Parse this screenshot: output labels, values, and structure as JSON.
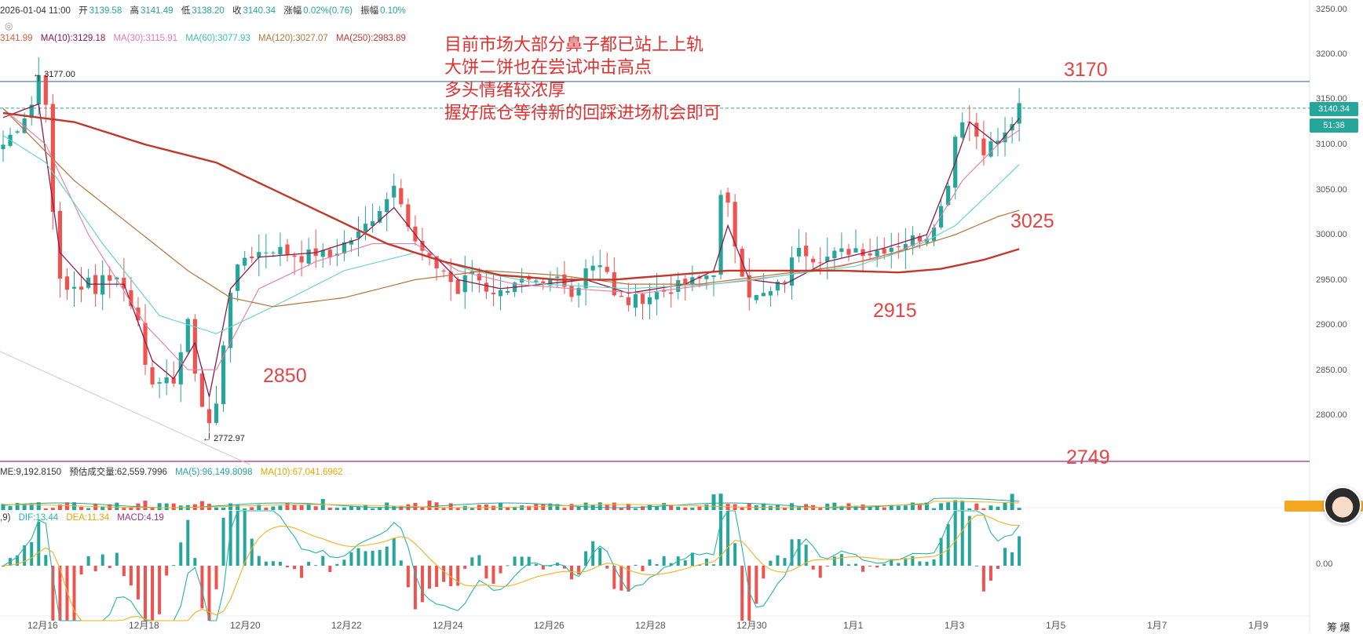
{
  "header": {
    "datetime": "2026-01-04 11:00",
    "open_label": "开",
    "open": "3139.58",
    "high_label": "高",
    "high": "3141.49",
    "low_label": "低",
    "low": "3138.20",
    "close_label": "收",
    "close": "3140.34",
    "change_label": "涨幅",
    "change": "0.02%(0.76)",
    "amp_label": "振幅",
    "amp": "0.10%"
  },
  "ma_row": {
    "ma5": "3141.99",
    "ma10": "MA(10):3129.18",
    "ma30": "MA(30):3115.91",
    "ma60": "MA(60):3077.93",
    "ma120": "MA(120):3027.07",
    "ma250": "MA(250):2983.89"
  },
  "volume_row": {
    "vol": "ME:9,192.8150",
    "est": "预估成交量:62,559.7996",
    "ma5": "MA(5):96,149.8098",
    "ma10": "MA(10):67,041.6962"
  },
  "macd_row": {
    "prefix": ",9)",
    "dif": "DIF:13.44",
    "dea": "DEA:11.34",
    "macd": "MACD:4.19"
  },
  "annotation": {
    "lines": [
      "目前市场大部分鼻子都已站上上轨",
      "大饼二饼也在尝试冲击高点",
      "多头情绪较浓厚",
      "握好底仓等待新的回踩进场机会即可"
    ]
  },
  "levels": {
    "l3170": "3170",
    "l3025": "3025",
    "l2915": "2915",
    "l2850": "2850",
    "l2749": "2749"
  },
  "markers": {
    "high": "3177.00",
    "low": "2772.97"
  },
  "price_tag": {
    "price": "3140.34",
    "countdown": "51:38"
  },
  "y_axis": [
    "3250.00",
    "3200.00",
    "3150.00",
    "3100.00",
    "3050.00",
    "3000.00",
    "2950.00",
    "2900.00",
    "2850.00",
    "2800.00"
  ],
  "macd_axis": "0.00",
  "x_axis": [
    "12月16",
    "12月18",
    "12月20",
    "12月22",
    "12月24",
    "12月26",
    "12月28",
    "12月30",
    "1月1",
    "1月3",
    "1月5",
    "1月7",
    "1月9"
  ],
  "brand": "筹 爆",
  "colors": {
    "up": "#26a69a",
    "down": "#ef5350",
    "ma10": "#8b1a4a",
    "ma30": "#e37aa8",
    "ma60": "#5fd4c0",
    "ma120": "#b5733a",
    "ma250": "#c0392b",
    "annotation": "#e03030",
    "macd_dif": "#26b5a5",
    "macd_dea": "#f2b21d",
    "hline_3170": "#5b7fa6",
    "hline_2749": "#9c2f8c"
  },
  "chart_data": {
    "type": "candlestick",
    "ylim": [
      2740,
      3260
    ],
    "ma_ylim": [
      2740,
      3260
    ],
    "close_path": [
      [
        0,
        3100
      ],
      [
        2,
        3120
      ],
      [
        4,
        3145
      ],
      [
        5,
        3177
      ],
      [
        6,
        3150
      ],
      [
        7,
        3020
      ],
      [
        8,
        2950
      ],
      [
        9,
        2940
      ],
      [
        10,
        2945
      ],
      [
        11,
        2935
      ],
      [
        12,
        2950
      ],
      [
        13,
        2940
      ],
      [
        14,
        2955
      ],
      [
        16,
        2950
      ],
      [
        17,
        2945
      ],
      [
        18,
        2920
      ],
      [
        19,
        2905
      ],
      [
        20,
        2860
      ],
      [
        21,
        2840
      ],
      [
        22,
        2830
      ],
      [
        24,
        2840
      ],
      [
        25,
        2870
      ],
      [
        26,
        2900
      ],
      [
        27,
        2850
      ],
      [
        28,
        2810
      ],
      [
        29,
        2790
      ],
      [
        30,
        2810
      ],
      [
        31,
        2880
      ],
      [
        32,
        2940
      ],
      [
        33,
        2960
      ],
      [
        34,
        2975
      ],
      [
        36,
        2980
      ],
      [
        38,
        2985
      ],
      [
        40,
        2980
      ],
      [
        42,
        2975
      ],
      [
        44,
        2980
      ],
      [
        46,
        2975
      ],
      [
        48,
        2990
      ],
      [
        50,
        3000
      ],
      [
        52,
        3020
      ],
      [
        54,
        3040
      ],
      [
        55,
        3060
      ],
      [
        56,
        3040
      ],
      [
        57,
        3010
      ],
      [
        58,
        2990
      ],
      [
        60,
        2970
      ],
      [
        62,
        2960
      ],
      [
        64,
        2935
      ],
      [
        65,
        2950
      ],
      [
        66,
        2960
      ],
      [
        68,
        2940
      ],
      [
        70,
        2935
      ],
      [
        72,
        2950
      ],
      [
        74,
        2945
      ],
      [
        76,
        2940
      ],
      [
        78,
        2950
      ],
      [
        80,
        2930
      ],
      [
        82,
        2965
      ],
      [
        84,
        2970
      ],
      [
        85,
        2960
      ],
      [
        86,
        2930
      ],
      [
        88,
        2925
      ],
      [
        90,
        2930
      ],
      [
        92,
        2935
      ],
      [
        94,
        2940
      ],
      [
        96,
        2945
      ],
      [
        98,
        2950
      ],
      [
        100,
        2960
      ],
      [
        101,
        3040
      ],
      [
        102,
        3030
      ],
      [
        103,
        2990
      ],
      [
        104,
        2960
      ],
      [
        105,
        2935
      ],
      [
        106,
        2930
      ],
      [
        108,
        2935
      ],
      [
        110,
        2950
      ],
      [
        112,
        2990
      ],
      [
        114,
        2975
      ],
      [
        116,
        2975
      ],
      [
        118,
        2980
      ],
      [
        120,
        2985
      ],
      [
        122,
        2980
      ],
      [
        124,
        2985
      ],
      [
        126,
        2990
      ],
      [
        128,
        2995
      ],
      [
        130,
        3000
      ],
      [
        132,
        3030
      ],
      [
        133,
        3060
      ],
      [
        134,
        3110
      ],
      [
        135,
        3130
      ],
      [
        136,
        3125
      ],
      [
        137,
        3110
      ],
      [
        138,
        3095
      ],
      [
        139,
        3100
      ],
      [
        140,
        3105
      ],
      [
        141,
        3110
      ],
      [
        142,
        3125
      ],
      [
        143,
        3140
      ]
    ],
    "ma_series": {
      "ma10": [
        [
          0,
          3130
        ],
        [
          5,
          3145
        ],
        [
          8,
          2980
        ],
        [
          12,
          2945
        ],
        [
          17,
          2945
        ],
        [
          21,
          2860
        ],
        [
          24,
          2840
        ],
        [
          27,
          2880
        ],
        [
          29,
          2820
        ],
        [
          32,
          2940
        ],
        [
          36,
          2975
        ],
        [
          44,
          2980
        ],
        [
          50,
          2995
        ],
        [
          55,
          3030
        ],
        [
          59,
          2990
        ],
        [
          64,
          2950
        ],
        [
          70,
          2940
        ],
        [
          76,
          2945
        ],
        [
          82,
          2950
        ],
        [
          88,
          2935
        ],
        [
          96,
          2945
        ],
        [
          100,
          2960
        ],
        [
          102,
          3010
        ],
        [
          105,
          2950
        ],
        [
          110,
          2945
        ],
        [
          116,
          2970
        ],
        [
          124,
          2985
        ],
        [
          130,
          3000
        ],
        [
          134,
          3080
        ],
        [
          136,
          3125
        ],
        [
          140,
          3100
        ],
        [
          143,
          3129
        ]
      ],
      "ma30": [
        [
          0,
          3140
        ],
        [
          6,
          3100
        ],
        [
          12,
          3000
        ],
        [
          20,
          2900
        ],
        [
          26,
          2850
        ],
        [
          30,
          2850
        ],
        [
          36,
          2940
        ],
        [
          44,
          2970
        ],
        [
          52,
          2990
        ],
        [
          58,
          2990
        ],
        [
          64,
          2960
        ],
        [
          72,
          2945
        ],
        [
          80,
          2940
        ],
        [
          90,
          2935
        ],
        [
          100,
          2945
        ],
        [
          106,
          2950
        ],
        [
          114,
          2960
        ],
        [
          124,
          2975
        ],
        [
          130,
          2995
        ],
        [
          135,
          3060
        ],
        [
          140,
          3100
        ],
        [
          143,
          3116
        ]
      ],
      "ma60": [
        [
          0,
          3110
        ],
        [
          6,
          3080
        ],
        [
          14,
          2990
        ],
        [
          22,
          2910
        ],
        [
          30,
          2890
        ],
        [
          38,
          2920
        ],
        [
          48,
          2960
        ],
        [
          58,
          2980
        ],
        [
          66,
          2960
        ],
        [
          76,
          2945
        ],
        [
          88,
          2940
        ],
        [
          100,
          2945
        ],
        [
          110,
          2955
        ],
        [
          120,
          2965
        ],
        [
          128,
          2985
        ],
        [
          134,
          3010
        ],
        [
          140,
          3055
        ],
        [
          143,
          3078
        ]
      ],
      "ma120": [
        [
          0,
          3140
        ],
        [
          10,
          3060
        ],
        [
          18,
          3010
        ],
        [
          26,
          2960
        ],
        [
          32,
          2930
        ],
        [
          38,
          2920
        ],
        [
          48,
          2930
        ],
        [
          58,
          2950
        ],
        [
          68,
          2960
        ],
        [
          78,
          2955
        ],
        [
          88,
          2945
        ],
        [
          98,
          2945
        ],
        [
          108,
          2955
        ],
        [
          118,
          2965
        ],
        [
          128,
          2985
        ],
        [
          134,
          3000
        ],
        [
          140,
          3020
        ],
        [
          143,
          3027
        ]
      ],
      "ma250": [
        [
          0,
          3135
        ],
        [
          10,
          3125
        ],
        [
          20,
          3100
        ],
        [
          30,
          3080
        ],
        [
          38,
          3050
        ],
        [
          46,
          3020
        ],
        [
          54,
          2990
        ],
        [
          62,
          2970
        ],
        [
          70,
          2955
        ],
        [
          78,
          2950
        ],
        [
          86,
          2950
        ],
        [
          94,
          2955
        ],
        [
          102,
          2960
        ],
        [
          110,
          2960
        ],
        [
          118,
          2960
        ],
        [
          126,
          2958
        ],
        [
          132,
          2962
        ],
        [
          138,
          2972
        ],
        [
          143,
          2984
        ]
      ]
    },
    "x_ticks": [
      "12月16",
      "12月18",
      "12月20",
      "12月22",
      "12月24",
      "12月26",
      "12月28",
      "12月30",
      "1月1",
      "1月3",
      "1月5",
      "1月7",
      "1月9"
    ],
    "annotated_levels": [
      3170,
      3025,
      2915,
      2850,
      2749
    ],
    "high_marker": 3177.0,
    "low_marker": 2772.97,
    "last_price": 3140.34
  }
}
